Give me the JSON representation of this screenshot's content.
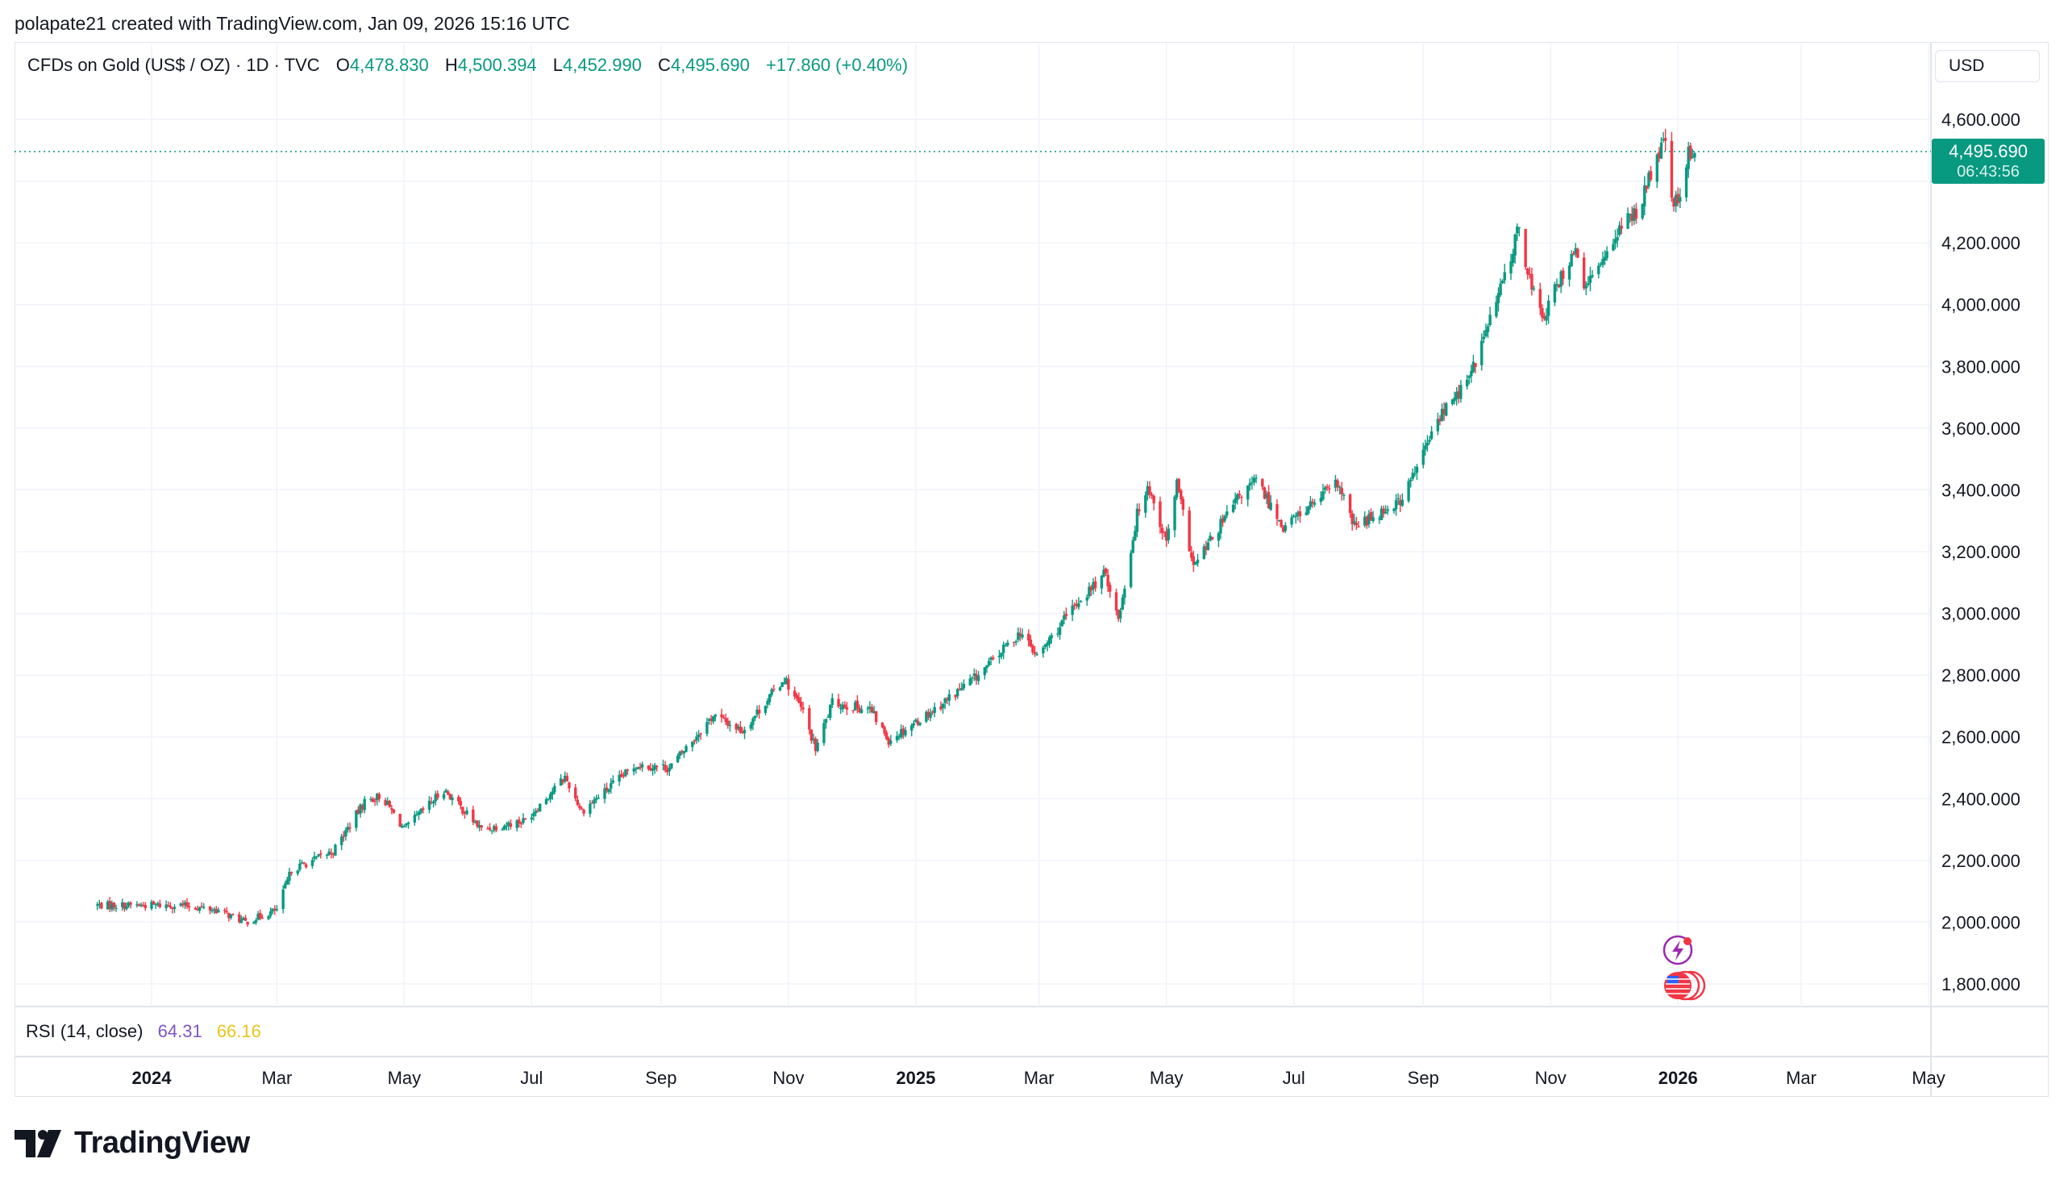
{
  "header": {
    "attribution": "polapate21 created with TradingView.com, Jan 09, 2026 15:16 UTC"
  },
  "legend": {
    "symbol": "CFDs on Gold (US$ / OZ) · 1D · TVC",
    "open_label": "O",
    "open": "4,478.830",
    "high_label": "H",
    "high": "4,500.394",
    "low_label": "L",
    "low": "4,452.990",
    "close_label": "C",
    "close": "4,495.690",
    "change": "+17.860 (+0.40%)"
  },
  "currency_button": "USD",
  "price_badge": {
    "price": "4,495.690",
    "countdown": "06:43:56"
  },
  "rsi": {
    "label": "RSI (14, close)",
    "value": "64.31",
    "ma_value": "66.16"
  },
  "brand": "TradingView",
  "colors": {
    "up": "#089981",
    "down": "#f23645",
    "grid": "#f0f3fa",
    "axis_text": "#131722",
    "rsi": "#7e57c2",
    "rsi_ma": "#e8c51c"
  },
  "chart_data": {
    "type": "candlestick",
    "title": "CFDs on Gold (US$ / OZ)",
    "interval": "1D",
    "ylabel": "USD",
    "ylim": [
      1750,
      4680
    ],
    "y_ticks": [
      "1,800.000",
      "2,000.000",
      "2,200.000",
      "2,400.000",
      "2,600.000",
      "2,800.000",
      "3,000.000",
      "3,200.000",
      "3,400.000",
      "3,600.000",
      "4,000.000",
      "4,200.000",
      "4,600.000"
    ],
    "y_tick_values": [
      1800,
      2000,
      2200,
      2400,
      2600,
      2800,
      3000,
      3200,
      3400,
      3600,
      4000,
      4200,
      4600
    ],
    "x_ticks": [
      {
        "label": "2024",
        "date": "2024-01-01",
        "bold": true
      },
      {
        "label": "Mar",
        "date": "2024-03-01"
      },
      {
        "label": "May",
        "date": "2024-05-01"
      },
      {
        "label": "Jul",
        "date": "2024-07-01"
      },
      {
        "label": "Sep",
        "date": "2024-09-01"
      },
      {
        "label": "Nov",
        "date": "2024-11-01"
      },
      {
        "label": "2025",
        "date": "2025-01-01",
        "bold": true
      },
      {
        "label": "Mar",
        "date": "2025-03-01"
      },
      {
        "label": "May",
        "date": "2025-05-01"
      },
      {
        "label": "Jul",
        "date": "2025-07-01"
      },
      {
        "label": "Sep",
        "date": "2025-09-01"
      },
      {
        "label": "Nov",
        "date": "2025-11-01"
      },
      {
        "label": "2026",
        "date": "2026-01-01",
        "bold": true
      },
      {
        "label": "Mar",
        "date": "2026-03-01"
      },
      {
        "label": "May",
        "date": "2026-05-01"
      }
    ],
    "x_range": [
      "2024-01-01",
      "2026-05-01"
    ],
    "last_price": 4495.69,
    "price_path": [
      {
        "date": "2024-01-15",
        "close": 2055
      },
      {
        "date": "2024-02-01",
        "close": 2040
      },
      {
        "date": "2024-02-15",
        "close": 2000
      },
      {
        "date": "2024-03-01",
        "close": 2040
      },
      {
        "date": "2024-03-08",
        "close": 2170
      },
      {
        "date": "2024-03-28",
        "close": 2230
      },
      {
        "date": "2024-04-12",
        "close": 2390
      },
      {
        "date": "2024-04-20",
        "close": 2410
      },
      {
        "date": "2024-05-01",
        "close": 2300
      },
      {
        "date": "2024-05-20",
        "close": 2430
      },
      {
        "date": "2024-06-07",
        "close": 2300
      },
      {
        "date": "2024-06-28",
        "close": 2330
      },
      {
        "date": "2024-07-17",
        "close": 2470
      },
      {
        "date": "2024-07-25",
        "close": 2360
      },
      {
        "date": "2024-08-20",
        "close": 2510
      },
      {
        "date": "2024-09-05",
        "close": 2500
      },
      {
        "date": "2024-09-26",
        "close": 2670
      },
      {
        "date": "2024-10-10",
        "close": 2620
      },
      {
        "date": "2024-10-30",
        "close": 2790
      },
      {
        "date": "2024-11-08",
        "close": 2680
      },
      {
        "date": "2024-11-14",
        "close": 2560
      },
      {
        "date": "2024-11-22",
        "close": 2710
      },
      {
        "date": "2024-12-10",
        "close": 2690
      },
      {
        "date": "2024-12-19",
        "close": 2590
      },
      {
        "date": "2025-01-10",
        "close": 2690
      },
      {
        "date": "2025-01-31",
        "close": 2800
      },
      {
        "date": "2025-02-20",
        "close": 2940
      },
      {
        "date": "2025-02-28",
        "close": 2860
      },
      {
        "date": "2025-03-20",
        "close": 3040
      },
      {
        "date": "2025-04-02",
        "close": 3130
      },
      {
        "date": "2025-04-08",
        "close": 2980
      },
      {
        "date": "2025-04-17",
        "close": 3320
      },
      {
        "date": "2025-04-22",
        "close": 3420
      },
      {
        "date": "2025-05-01",
        "close": 3230
      },
      {
        "date": "2025-05-06",
        "close": 3420
      },
      {
        "date": "2025-05-14",
        "close": 3150
      },
      {
        "date": "2025-06-05",
        "close": 3380
      },
      {
        "date": "2025-06-13",
        "close": 3430
      },
      {
        "date": "2025-06-26",
        "close": 3280
      },
      {
        "date": "2025-07-22",
        "close": 3420
      },
      {
        "date": "2025-07-30",
        "close": 3280
      },
      {
        "date": "2025-08-22",
        "close": 3370
      },
      {
        "date": "2025-09-09",
        "close": 3640
      },
      {
        "date": "2025-09-23",
        "close": 3760
      },
      {
        "date": "2025-10-08",
        "close": 4050
      },
      {
        "date": "2025-10-17",
        "close": 4250
      },
      {
        "date": "2025-10-21",
        "close": 4110
      },
      {
        "date": "2025-10-28",
        "close": 3950
      },
      {
        "date": "2025-11-12",
        "close": 4180
      },
      {
        "date": "2025-11-18",
        "close": 4050
      },
      {
        "date": "2025-12-01",
        "close": 4220
      },
      {
        "date": "2025-12-12",
        "close": 4300
      },
      {
        "date": "2025-12-26",
        "close": 4540
      },
      {
        "date": "2025-12-29",
        "close": 4330
      },
      {
        "date": "2026-01-02",
        "close": 4330
      },
      {
        "date": "2026-01-06",
        "close": 4490
      },
      {
        "date": "2026-01-09",
        "close": 4495.69
      }
    ],
    "indicator": {
      "name": "RSI (14, close)",
      "value": 64.31,
      "ma": 66.16
    }
  }
}
